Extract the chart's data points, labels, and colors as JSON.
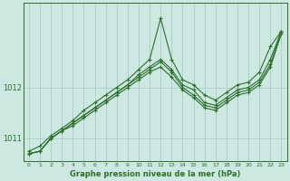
{
  "bg_color": "#cce8e0",
  "grid_color": "#aacccc",
  "line_color": "#2d6e2d",
  "marker_color": "#2d6e2d",
  "xlabel": "Graphe pression niveau de la mer (hPa)",
  "ylim": [
    1010.55,
    1013.65
  ],
  "xlim": [
    -0.5,
    23.5
  ],
  "yticks": [
    1011,
    1012
  ],
  "xticks": [
    0,
    1,
    2,
    3,
    4,
    5,
    6,
    7,
    8,
    9,
    10,
    11,
    12,
    13,
    14,
    15,
    16,
    17,
    18,
    19,
    20,
    21,
    22,
    23
  ],
  "series": [
    [
      1010.75,
      1010.85,
      1011.05,
      1011.2,
      1011.35,
      1011.55,
      1011.7,
      1011.85,
      1012.0,
      1012.15,
      1012.35,
      1012.55,
      1013.35,
      1012.55,
      1012.15,
      1012.05,
      1011.85,
      1011.75,
      1011.9,
      1012.05,
      1012.1,
      1012.3,
      1012.8,
      1013.1
    ],
    [
      1010.7,
      1010.75,
      1011.0,
      1011.15,
      1011.3,
      1011.45,
      1011.6,
      1011.75,
      1011.9,
      1012.05,
      1012.25,
      1012.4,
      1012.55,
      1012.35,
      1012.05,
      1011.95,
      1011.7,
      1011.65,
      1011.8,
      1011.95,
      1012.0,
      1012.15,
      1012.55,
      1013.1
    ],
    [
      1010.7,
      1010.75,
      1011.0,
      1011.15,
      1011.3,
      1011.45,
      1011.6,
      1011.75,
      1011.9,
      1012.05,
      1012.2,
      1012.35,
      1012.5,
      1012.3,
      1012.0,
      1011.85,
      1011.65,
      1011.6,
      1011.75,
      1011.9,
      1011.95,
      1012.1,
      1012.45,
      1013.1
    ],
    [
      1010.7,
      1010.75,
      1011.0,
      1011.15,
      1011.25,
      1011.4,
      1011.55,
      1011.7,
      1011.85,
      1012.0,
      1012.15,
      1012.3,
      1012.4,
      1012.2,
      1011.95,
      1011.8,
      1011.6,
      1011.55,
      1011.7,
      1011.85,
      1011.9,
      1012.05,
      1012.4,
      1013.05
    ]
  ]
}
